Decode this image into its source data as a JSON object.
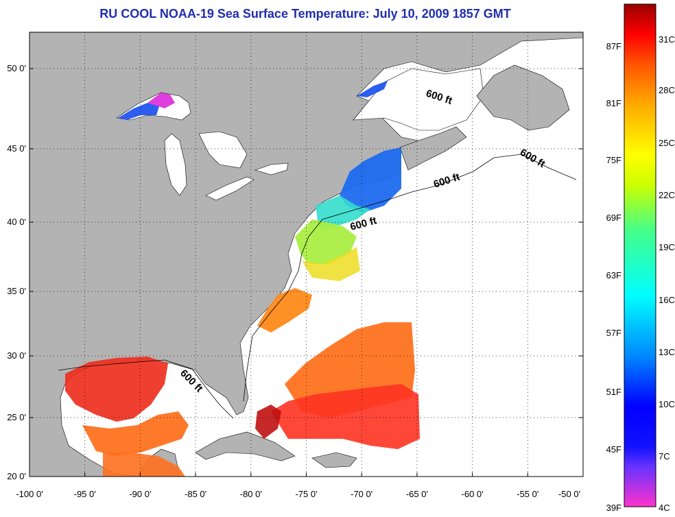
{
  "title": "RU COOL  NOAA-19  Sea Surface Temperature:  July 10, 2009 1857 GMT",
  "map": {
    "lon_labels": [
      "-100 0'",
      "-95 0'",
      "-90 0'",
      "-85 0'",
      "-80 0'",
      "-75 0'",
      "-70 0'",
      "-65 0'",
      "-60 0'",
      "-55 0'",
      "-50 0'"
    ],
    "lat_labels": [
      "50 0'",
      "45 0'",
      "40 0'",
      "35 0'",
      "30 0'",
      "25 0'",
      "20 0'"
    ],
    "depth_contour_labels": [
      "600 ft",
      "600 ft",
      "600 ft",
      "600 ft",
      "600 ft"
    ],
    "land_color": "#b3b3b3",
    "water_color": "#ffffff",
    "grid": true
  },
  "colorbar": {
    "fahrenheit_labels": [
      "87F",
      "81F",
      "75F",
      "69F",
      "63F",
      "57F",
      "51F",
      "45F",
      "39F"
    ],
    "celsius_labels": [
      "31C",
      "28C",
      "25C",
      "22C",
      "19C",
      "16C",
      "13C",
      "10C",
      "7C",
      "4C"
    ],
    "colors": [
      "#ff33cc",
      "#6633ff",
      "#0000ff",
      "#0088ff",
      "#00ffff",
      "#44ff88",
      "#ccff00",
      "#ffff00",
      "#ffaa00",
      "#ff5500",
      "#ff0000",
      "#990000"
    ]
  }
}
